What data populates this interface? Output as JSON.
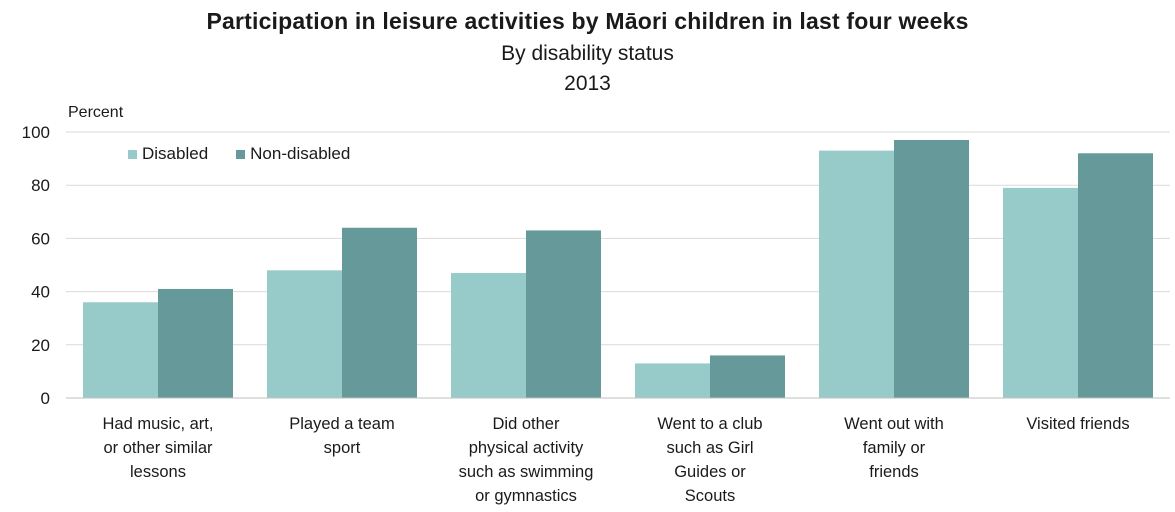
{
  "chart_data": {
    "type": "bar",
    "title": "Participation in leisure activities by Māori children in last four weeks",
    "subtitle_lines": [
      "By disability status",
      "2013"
    ],
    "ylabel": "Percent",
    "xlabel": "",
    "ylim": [
      0,
      100
    ],
    "yticks": [
      0,
      20,
      40,
      60,
      80,
      100
    ],
    "grid": true,
    "legend_position": "top-left",
    "categories": [
      [
        "Had music, art,",
        "or other similar",
        "lessons"
      ],
      [
        "Played a team",
        "sport"
      ],
      [
        "Did other",
        "physical activity",
        "such as swimming",
        "or gymnastics"
      ],
      [
        "Went to a club",
        "such as Girl",
        "Guides or",
        "Scouts"
      ],
      [
        "Went out with",
        "family or",
        "friends"
      ],
      [
        "Visited friends"
      ]
    ],
    "series": [
      {
        "name": "Disabled",
        "color": "#97cbc9",
        "values": [
          36,
          48,
          47,
          13,
          93,
          79
        ]
      },
      {
        "name": "Non-disabled",
        "color": "#669999",
        "values": [
          41,
          64,
          63,
          16,
          97,
          92
        ]
      }
    ]
  }
}
